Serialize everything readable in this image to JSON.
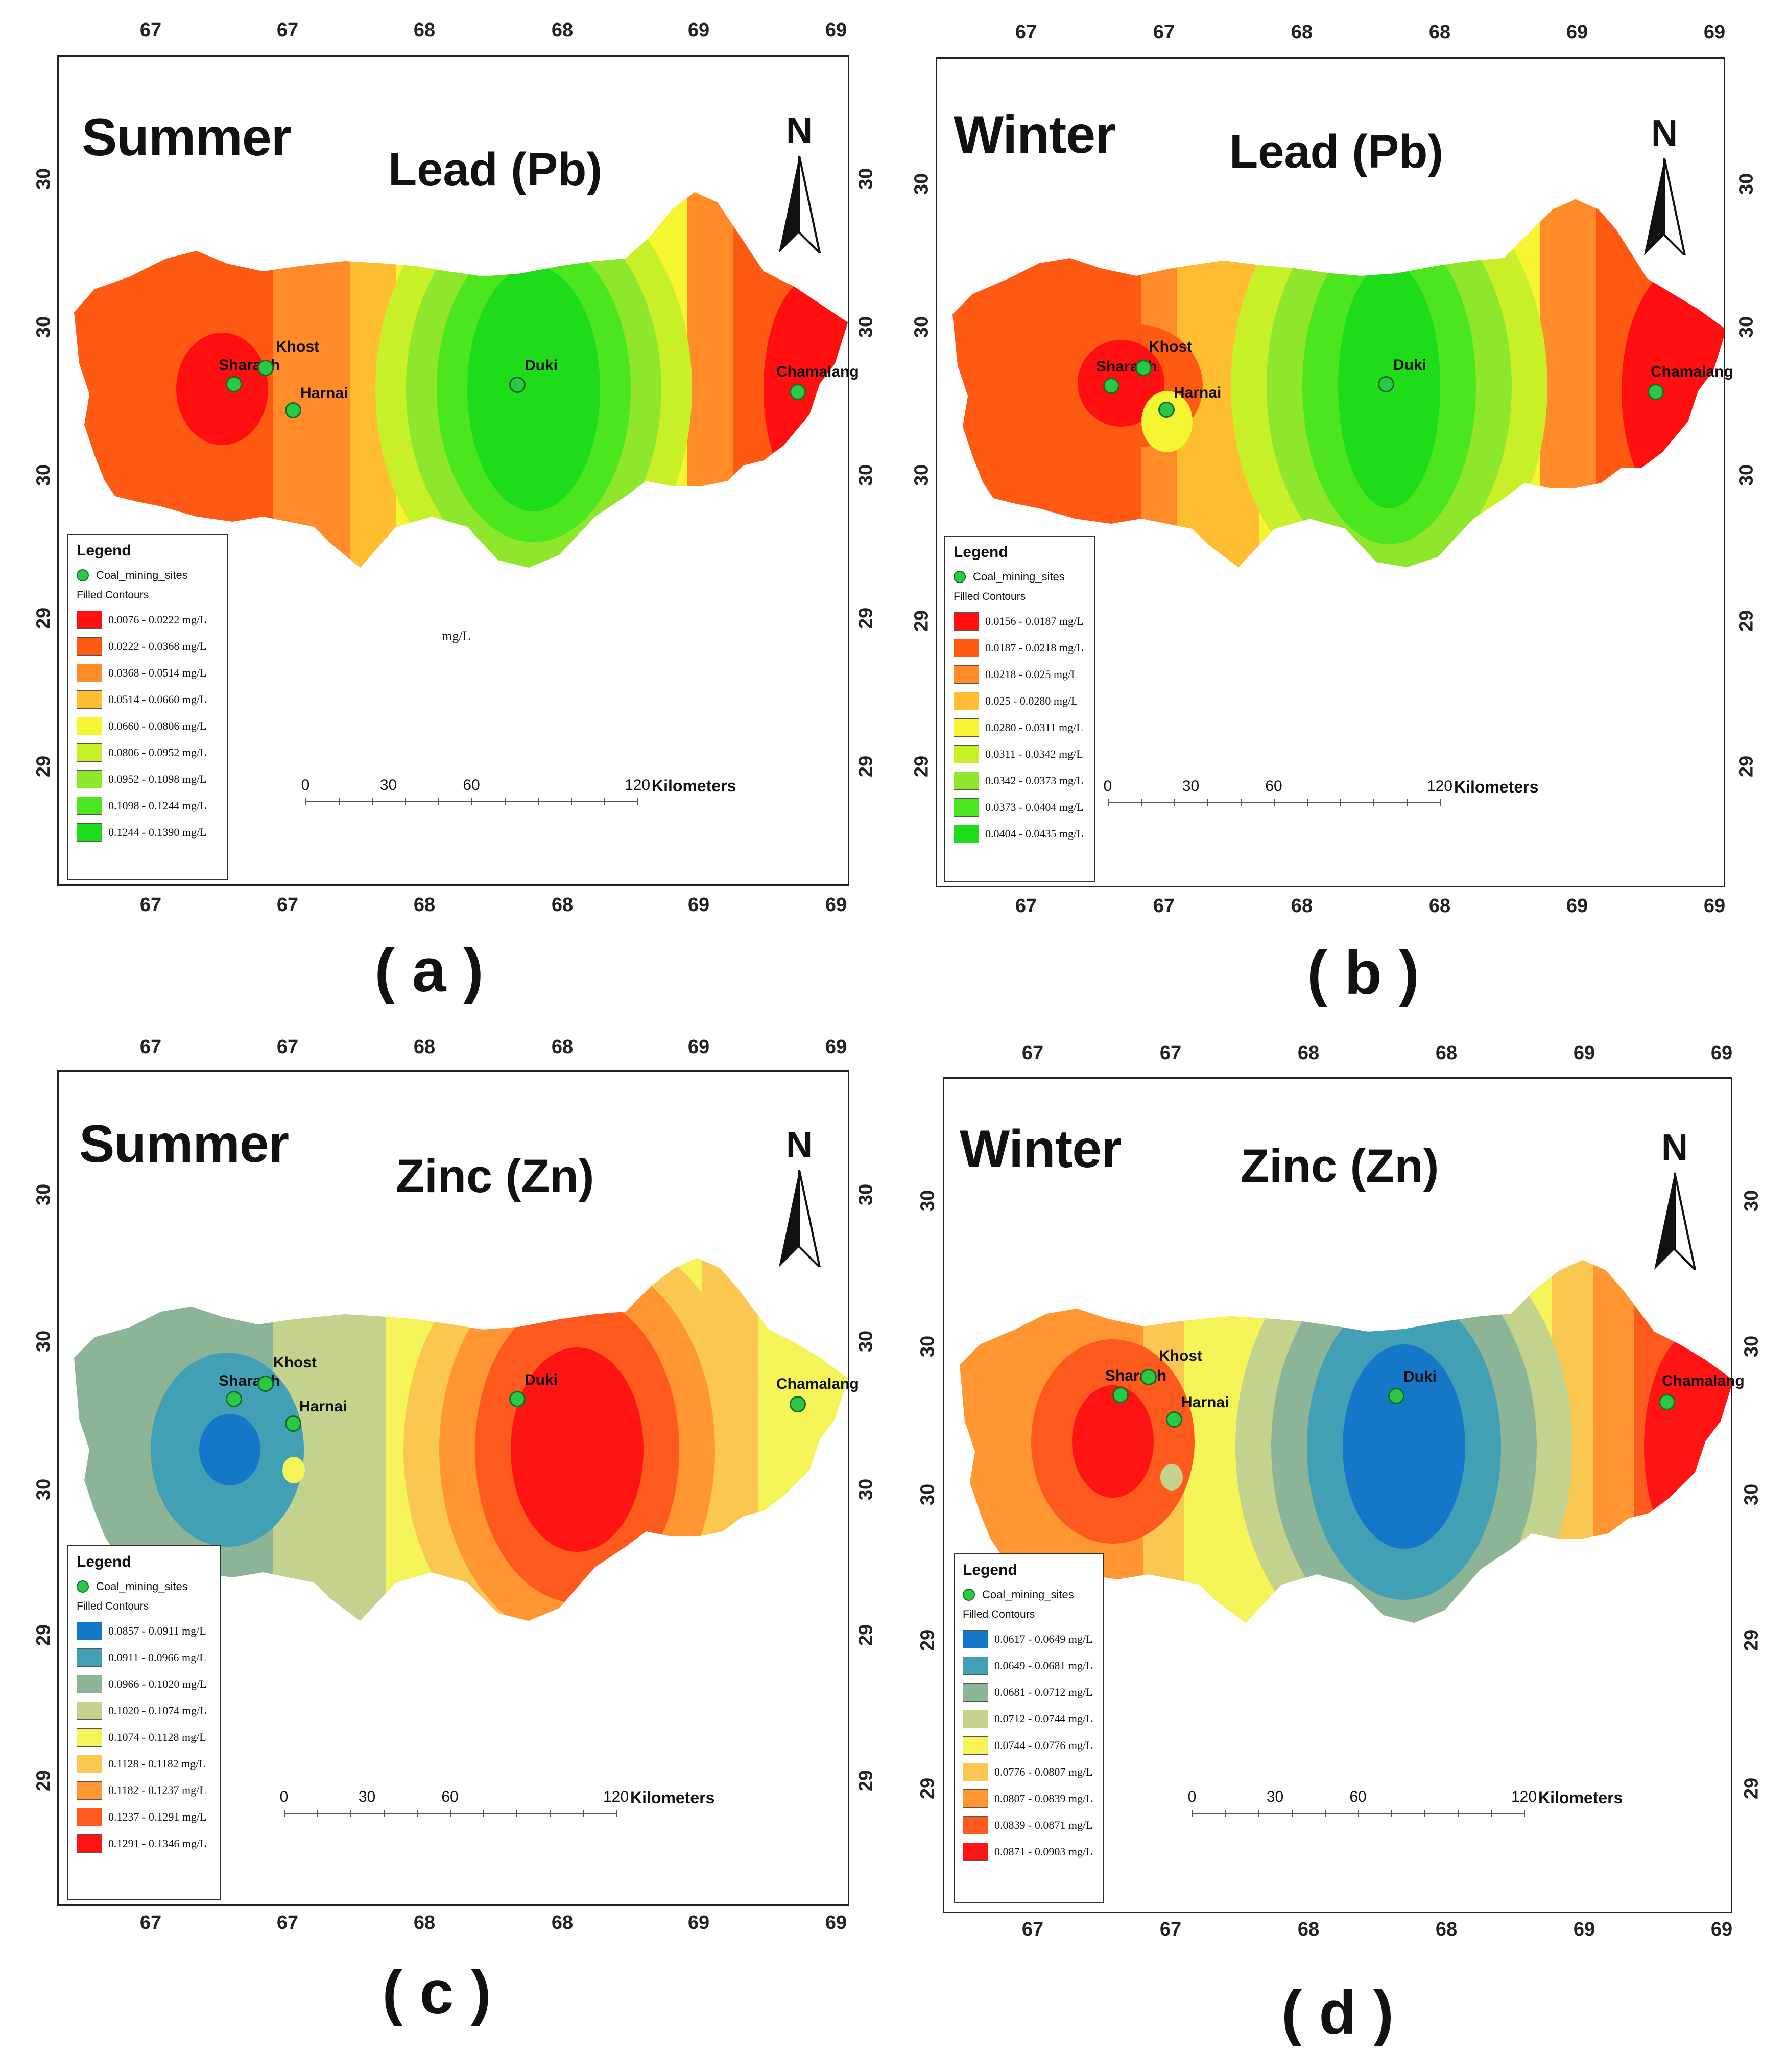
{
  "panels": [
    {
      "id": "a",
      "season": "Summer",
      "metal": "Lead (Pb)",
      "caption": "( a )",
      "x_ticks": [
        "67",
        "67",
        "68",
        "68",
        "69",
        "69"
      ],
      "y_ticks": [
        "30",
        "30",
        "30",
        "29",
        "29"
      ],
      "unit_note": "mg/L",
      "sites": [
        {
          "name": "Sharagh"
        },
        {
          "name": "Khost"
        },
        {
          "name": "Harnai"
        },
        {
          "name": "Duki"
        },
        {
          "name": "Chamalang"
        }
      ],
      "legend": {
        "title": "Legend",
        "site_label": "Coal_mining_sites",
        "contours_label": "Filled Contours",
        "classes": [
          {
            "label": "0.0076 - 0.0222  mg/L",
            "color": "#ff0f0f"
          },
          {
            "label": "0.0222 - 0.0368  mg/L",
            "color": "#ff5a14"
          },
          {
            "label": "0.0368 - 0.0514  mg/L",
            "color": "#ff8c28"
          },
          {
            "label": "0.0514 - 0.0660  mg/L",
            "color": "#ffbe32"
          },
          {
            "label": "0.0660 - 0.0806  mg/L",
            "color": "#f5f532"
          },
          {
            "label": "0.0806 - 0.0952  mg/L",
            "color": "#c8f028"
          },
          {
            "label": "0.0952 - 0.1098  mg/L",
            "color": "#8ee62d"
          },
          {
            "label": "0.1098 - 0.1244  mg/L",
            "color": "#4be61e"
          },
          {
            "label": "0.1244 - 0.1390  mg/L",
            "color": "#1edc19"
          }
        ]
      },
      "scale": {
        "labels": [
          "0",
          "30",
          "60",
          "120"
        ],
        "unit": "Kilometers"
      }
    },
    {
      "id": "b",
      "season": "Winter",
      "metal": "Lead (Pb)",
      "caption": "( b )",
      "x_ticks": [
        "67",
        "67",
        "68",
        "68",
        "69",
        "69"
      ],
      "y_ticks": [
        "30",
        "30",
        "30",
        "29",
        "29"
      ],
      "sites": [
        {
          "name": "Sharagh"
        },
        {
          "name": "Khost"
        },
        {
          "name": "Harnai"
        },
        {
          "name": "Duki"
        },
        {
          "name": "Chamalang"
        }
      ],
      "legend": {
        "title": "Legend",
        "site_label": "Coal_mining_sites",
        "contours_label": "Filled Contours",
        "classes": [
          {
            "label": "0.0156 - 0.0187  mg/L",
            "color": "#ff0f0f"
          },
          {
            "label": "0.0187 - 0.0218  mg/L",
            "color": "#ff5a14"
          },
          {
            "label": "0.0218 - 0.025  mg/L",
            "color": "#ff8c28"
          },
          {
            "label": "0.025 - 0.0280  mg/L",
            "color": "#ffbe32"
          },
          {
            "label": "0.0280 - 0.0311  mg/L",
            "color": "#f5f532"
          },
          {
            "label": "0.0311 - 0.0342  mg/L",
            "color": "#c8f028"
          },
          {
            "label": "0.0342 - 0.0373  mg/L",
            "color": "#8ee62d"
          },
          {
            "label": "0.0373 - 0.0404  mg/L",
            "color": "#4be61e"
          },
          {
            "label": "0.0404 - 0.0435  mg/L",
            "color": "#1edc19"
          }
        ]
      },
      "scale": {
        "labels": [
          "0",
          "30",
          "60",
          "120"
        ],
        "unit": "Kilometers"
      }
    },
    {
      "id": "c",
      "season": "Summer",
      "metal": "Zinc (Zn)",
      "caption": "( c )",
      "x_ticks": [
        "67",
        "67",
        "68",
        "68",
        "69",
        "69"
      ],
      "y_ticks": [
        "30",
        "30",
        "30",
        "29",
        "29"
      ],
      "sites": [
        {
          "name": "Sharagh"
        },
        {
          "name": "Khost"
        },
        {
          "name": "Harnai"
        },
        {
          "name": "Duki"
        },
        {
          "name": "Chamalang"
        }
      ],
      "legend": {
        "title": "Legend",
        "site_label": "Coal_mining_sites",
        "contours_label": "Filled Contours",
        "classes": [
          {
            "label": "0.0857 - 0.0911  mg/L",
            "color": "#1477c8"
          },
          {
            "label": "0.0911 - 0.0966  mg/L",
            "color": "#41a0b4"
          },
          {
            "label": "0.0966 - 0.1020  mg/L",
            "color": "#8cb496"
          },
          {
            "label": "0.1020 - 0.1074  mg/L",
            "color": "#c3d28c"
          },
          {
            "label": "0.1074 - 0.1128  mg/L",
            "color": "#f5f55a"
          },
          {
            "label": "0.1128 - 0.1182  mg/L",
            "color": "#fac850"
          },
          {
            "label": "0.1182 - 0.1237  mg/L",
            "color": "#ff9632"
          },
          {
            "label": "0.1237 - 0.1291  mg/L",
            "color": "#ff5a1e"
          },
          {
            "label": "0.1291 - 0.1346  mg/L",
            "color": "#ff1414"
          }
        ]
      },
      "scale": {
        "labels": [
          "0",
          "30",
          "60",
          "120"
        ],
        "unit": "Kilometers"
      }
    },
    {
      "id": "d",
      "season": "Winter",
      "metal": "Zinc (Zn)",
      "caption": "( d )",
      "x_ticks": [
        "67",
        "67",
        "68",
        "68",
        "69",
        "69"
      ],
      "y_ticks": [
        "30",
        "30",
        "30",
        "29",
        "29"
      ],
      "sites": [
        {
          "name": "Sharagh"
        },
        {
          "name": "Khost"
        },
        {
          "name": "Harnai"
        },
        {
          "name": "Duki"
        },
        {
          "name": "Chamalang"
        }
      ],
      "legend": {
        "title": "Legend",
        "site_label": "Coal_mining_sites",
        "contours_label": "Filled Contours",
        "classes": [
          {
            "label": "0.0617 - 0.0649  mg/L",
            "color": "#1477c8"
          },
          {
            "label": "0.0649 - 0.0681  mg/L",
            "color": "#41a0b4"
          },
          {
            "label": "0.0681 - 0.0712  mg/L",
            "color": "#8cb496"
          },
          {
            "label": "0.0712 - 0.0744  mg/L",
            "color": "#c3d28c"
          },
          {
            "label": "0.0744 - 0.0776  mg/L",
            "color": "#f5f55a"
          },
          {
            "label": "0.0776 - 0.0807  mg/L",
            "color": "#fac850"
          },
          {
            "label": "0.0807 - 0.0839  mg/L",
            "color": "#ff9632"
          },
          {
            "label": "0.0839 - 0.0871  mg/L",
            "color": "#ff5a1e"
          },
          {
            "label": "0.0871 - 0.0903  mg/L",
            "color": "#ff1414"
          }
        ]
      },
      "scale": {
        "labels": [
          "0",
          "30",
          "60",
          "120"
        ],
        "unit": "Kilometers"
      }
    }
  ]
}
